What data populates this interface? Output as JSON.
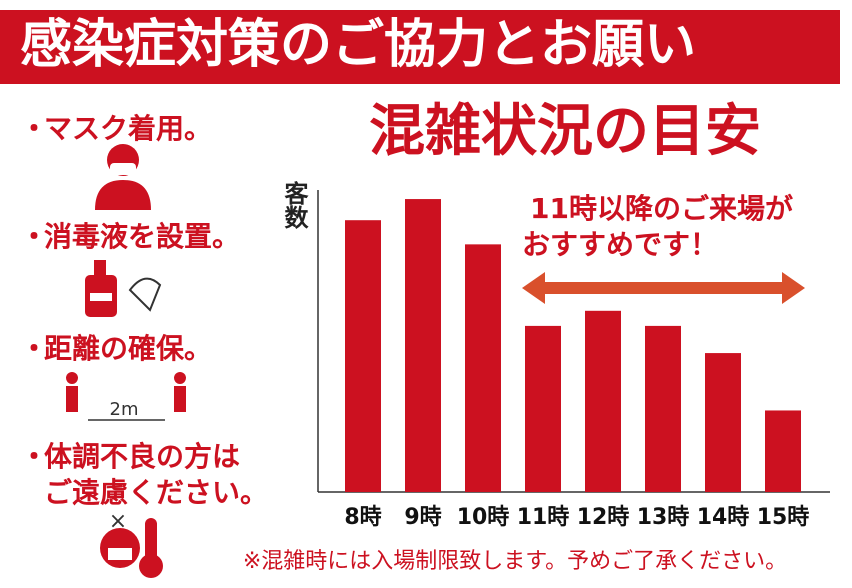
{
  "header": {
    "title": "感染症対策のご協力とお願い"
  },
  "list": {
    "items": [
      [
        "マスク着用。"
      ],
      [
        "消毒液を設置。"
      ],
      [
        "距離の確保。"
      ],
      [
        "体調不良の方は",
        "ご遠慮ください。"
      ]
    ]
  },
  "icons": {
    "distance": "2m",
    "cross": "×"
  },
  "note": "※混雑時には入場制限致します。予めご了承ください。",
  "chart_data": {
    "type": "bar",
    "title": "混雑状況の目安",
    "y_label": "客数",
    "categories": [
      "8時",
      "9時",
      "10時",
      "11時",
      "12時",
      "13時",
      "14時",
      "15時"
    ],
    "values": [
      90,
      97,
      82,
      55,
      60,
      55,
      46,
      27
    ],
    "color": "#cc1120",
    "ylim": [
      0,
      100
    ],
    "annotation": [
      "11時以降のご来場が",
      "おすすめです！"
    ],
    "arrow_color": "#d9502c"
  }
}
